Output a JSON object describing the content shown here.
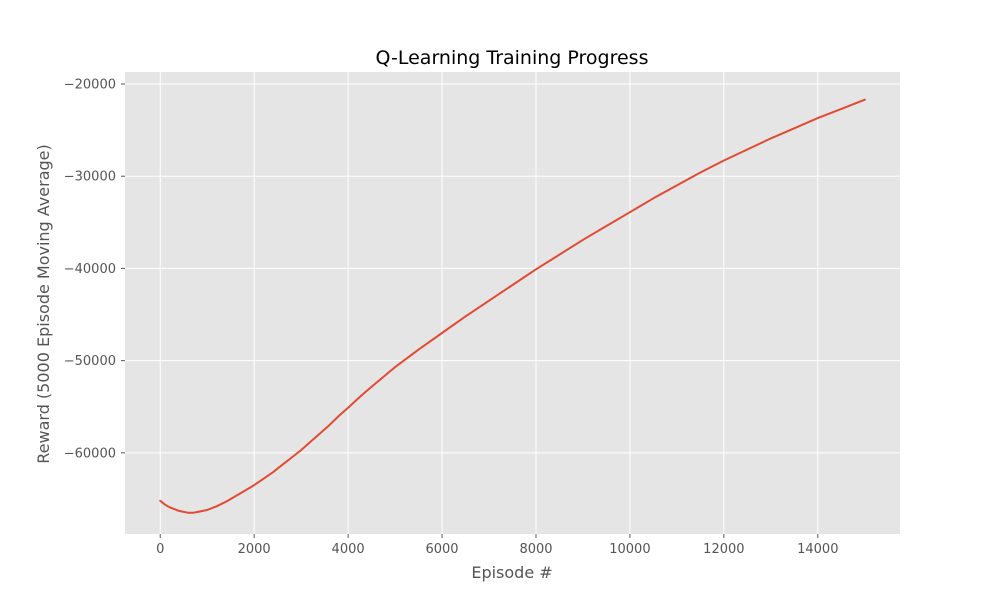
{
  "chart_data": {
    "type": "line",
    "title": "Q-Learning Training Progress",
    "xlabel": "Episode #",
    "ylabel": "Reward (5000 Episode Moving Average)",
    "xlim": [
      -750,
      15750
    ],
    "ylim": [
      -68800,
      -18700
    ],
    "xticks": [
      0,
      2000,
      4000,
      6000,
      8000,
      10000,
      12000,
      14000
    ],
    "xtick_labels": [
      "0",
      "2000",
      "4000",
      "6000",
      "8000",
      "10000",
      "12000",
      "14000"
    ],
    "yticks": [
      -60000,
      -50000,
      -40000,
      -30000,
      -20000
    ],
    "ytick_labels": [
      "−60000",
      "−50000",
      "−40000",
      "−30000",
      "−20000"
    ],
    "grid": true,
    "background_color": "#e5e5e5",
    "grid_color": "#ffffff",
    "line_color": "#e24a33",
    "series": [
      {
        "name": "",
        "x": [
          0,
          100,
          200,
          300,
          400,
          500,
          600,
          700,
          800,
          1000,
          1200,
          1400,
          1600,
          1800,
          2000,
          2200,
          2400,
          2600,
          2800,
          3000,
          3200,
          3400,
          3600,
          3800,
          4000,
          4300,
          4600,
          5000,
          5500,
          6000,
          6500,
          7000,
          7500,
          8000,
          8500,
          9000,
          9500,
          10000,
          10500,
          11000,
          11500,
          12000,
          12500,
          13000,
          13500,
          14000,
          14500,
          15000
        ],
        "y": [
          -65200,
          -65600,
          -65900,
          -66100,
          -66300,
          -66400,
          -66500,
          -66500,
          -66400,
          -66200,
          -65800,
          -65300,
          -64700,
          -64100,
          -63500,
          -62800,
          -62100,
          -61300,
          -60500,
          -59700,
          -58800,
          -57900,
          -57000,
          -56000,
          -55100,
          -53700,
          -52400,
          -50700,
          -48800,
          -47000,
          -45200,
          -43500,
          -41800,
          -40100,
          -38500,
          -36900,
          -35400,
          -33900,
          -32400,
          -31000,
          -29600,
          -28300,
          -27100,
          -25900,
          -24800,
          -23700,
          -22700,
          -21700
        ]
      }
    ]
  }
}
